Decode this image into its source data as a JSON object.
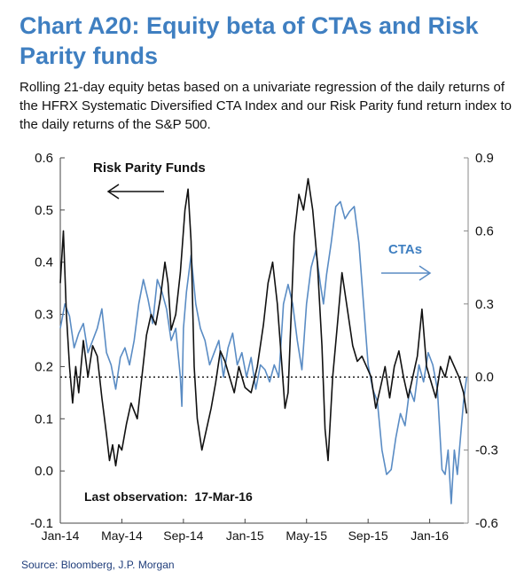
{
  "header": {
    "title": "Chart A20: Equity beta of CTAs and Risk Parity funds",
    "subtitle": "Rolling 21-day equity betas based on a univariate regression of the daily returns of the HFRX Systematic Diversified CTA Index and our Risk Parity fund return index to the daily returns of the S&P 500."
  },
  "footer": {
    "source": "Source: Bloomberg, J.P. Morgan"
  },
  "colors": {
    "title": "#3f7fc1",
    "risk_parity": "#111111",
    "ctas": "#5a8cc4",
    "axis": "#888888"
  },
  "chart_data": {
    "type": "line",
    "x_tick_labels": [
      "Jan-14",
      "May-14",
      "Sep-14",
      "Jan-15",
      "May-15",
      "Sep-15",
      "Jan-16"
    ],
    "x_tick_months": [
      0,
      4,
      8,
      12,
      16,
      20,
      24
    ],
    "x_range_months": [
      0,
      26.5
    ],
    "left_axis": {
      "ylim": [
        -0.1,
        0.6
      ],
      "ticks": [
        "-0.1",
        "0.0",
        "0.1",
        "0.2",
        "0.3",
        "0.4",
        "0.5",
        "0.6"
      ]
    },
    "right_axis": {
      "ylim": [
        -0.6,
        0.9
      ],
      "ticks": [
        "-0.6",
        "-0.3",
        "0.0",
        "0.3",
        "0.6",
        "0.9"
      ]
    },
    "zero_line": 0.0,
    "series": [
      {
        "name": "Risk Parity Funds",
        "axis": "left",
        "color": "#111111",
        "x": [
          0,
          0.2,
          0.4,
          0.6,
          0.8,
          1.0,
          1.2,
          1.5,
          1.8,
          2.1,
          2.4,
          2.7,
          3.0,
          3.2,
          3.4,
          3.6,
          3.8,
          4.0,
          4.3,
          4.6,
          5.0,
          5.3,
          5.6,
          5.9,
          6.2,
          6.5,
          6.8,
          7.0,
          7.2,
          7.5,
          7.8,
          8.1,
          8.3,
          8.5,
          8.7,
          8.9,
          9.2,
          9.5,
          9.8,
          10.1,
          10.4,
          10.7,
          11.0,
          11.3,
          11.6,
          12.0,
          12.4,
          12.8,
          13.2,
          13.5,
          13.8,
          14.1,
          14.4,
          14.6,
          14.8,
          15.0,
          15.2,
          15.5,
          15.8,
          16.1,
          16.4,
          16.7,
          17.0,
          17.2,
          17.4,
          17.7,
          18.0,
          18.3,
          18.6,
          19.0,
          19.3,
          19.6,
          19.9,
          20.2,
          20.5,
          20.8,
          21.1,
          21.4,
          21.7,
          22.0,
          22.3,
          22.6,
          22.9,
          23.2,
          23.5,
          23.8,
          24.1,
          24.4,
          24.7,
          25.0,
          25.3,
          25.6,
          25.9,
          26.2,
          26.4
        ],
        "values": [
          0.36,
          0.46,
          0.3,
          0.2,
          0.13,
          0.2,
          0.15,
          0.25,
          0.18,
          0.24,
          0.22,
          0.14,
          0.07,
          0.02,
          0.05,
          0.01,
          0.05,
          0.04,
          0.09,
          0.13,
          0.1,
          0.18,
          0.26,
          0.3,
          0.28,
          0.33,
          0.4,
          0.36,
          0.27,
          0.3,
          0.38,
          0.5,
          0.54,
          0.44,
          0.2,
          0.1,
          0.04,
          0.08,
          0.12,
          0.17,
          0.23,
          0.21,
          0.18,
          0.15,
          0.2,
          0.16,
          0.15,
          0.2,
          0.28,
          0.36,
          0.4,
          0.32,
          0.2,
          0.12,
          0.15,
          0.3,
          0.45,
          0.53,
          0.5,
          0.56,
          0.5,
          0.4,
          0.24,
          0.08,
          0.02,
          0.18,
          0.28,
          0.38,
          0.32,
          0.24,
          0.21,
          0.22,
          0.2,
          0.18,
          0.12,
          0.16,
          0.2,
          0.14,
          0.2,
          0.23,
          0.18,
          0.14,
          0.18,
          0.22,
          0.31,
          0.2,
          0.17,
          0.14,
          0.2,
          0.18,
          0.22,
          0.2,
          0.18,
          0.15,
          0.11
        ]
      },
      {
        "name": "CTAs",
        "axis": "right",
        "color": "#5a8cc4",
        "x": [
          0,
          0.3,
          0.6,
          0.9,
          1.2,
          1.5,
          1.8,
          2.1,
          2.4,
          2.7,
          3.0,
          3.3,
          3.6,
          3.9,
          4.2,
          4.5,
          4.8,
          5.1,
          5.4,
          5.7,
          6.0,
          6.3,
          6.6,
          6.9,
          7.2,
          7.5,
          7.8,
          7.9,
          8.0,
          8.2,
          8.5,
          8.8,
          9.1,
          9.4,
          9.7,
          10.0,
          10.3,
          10.6,
          10.9,
          11.2,
          11.5,
          11.8,
          12.1,
          12.4,
          12.7,
          13.0,
          13.3,
          13.6,
          13.9,
          14.2,
          14.5,
          14.8,
          15.1,
          15.4,
          15.7,
          16.0,
          16.3,
          16.6,
          16.9,
          17.1,
          17.3,
          17.6,
          17.9,
          18.2,
          18.5,
          18.8,
          19.1,
          19.4,
          19.7,
          20.0,
          20.3,
          20.6,
          20.9,
          21.2,
          21.5,
          21.8,
          22.1,
          22.4,
          22.7,
          23.0,
          23.3,
          23.6,
          23.9,
          24.2,
          24.5,
          24.8,
          25.0,
          25.2,
          25.4,
          25.6,
          25.8,
          26.0,
          26.2,
          26.4
        ],
        "values": [
          0.2,
          0.3,
          0.25,
          0.12,
          0.18,
          0.22,
          0.1,
          0.15,
          0.2,
          0.28,
          0.1,
          0.05,
          -0.05,
          0.08,
          0.12,
          0.05,
          0.15,
          0.3,
          0.4,
          0.32,
          0.22,
          0.4,
          0.35,
          0.28,
          0.15,
          0.2,
          0.0,
          -0.12,
          0.2,
          0.35,
          0.5,
          0.3,
          0.2,
          0.15,
          0.05,
          0.1,
          0.15,
          0.0,
          0.12,
          0.18,
          0.05,
          0.1,
          0.0,
          0.08,
          -0.05,
          0.05,
          0.03,
          -0.02,
          0.05,
          0.0,
          0.3,
          0.38,
          0.3,
          0.15,
          0.03,
          0.3,
          0.45,
          0.52,
          0.38,
          0.3,
          0.42,
          0.55,
          0.7,
          0.72,
          0.65,
          0.68,
          0.7,
          0.55,
          0.3,
          0.05,
          -0.05,
          -0.1,
          -0.3,
          -0.4,
          -0.38,
          -0.25,
          -0.15,
          -0.2,
          -0.05,
          -0.1,
          0.05,
          -0.02,
          0.1,
          0.05,
          -0.05,
          -0.38,
          -0.4,
          -0.3,
          -0.52,
          -0.3,
          -0.4,
          -0.25,
          -0.1,
          0.0
        ]
      }
    ],
    "annotations": [
      {
        "text": "Risk Parity Funds",
        "arrow": "left"
      },
      {
        "text": "CTAs",
        "arrow": "right"
      },
      {
        "text": "Last observation:  17-Mar-16"
      }
    ]
  }
}
